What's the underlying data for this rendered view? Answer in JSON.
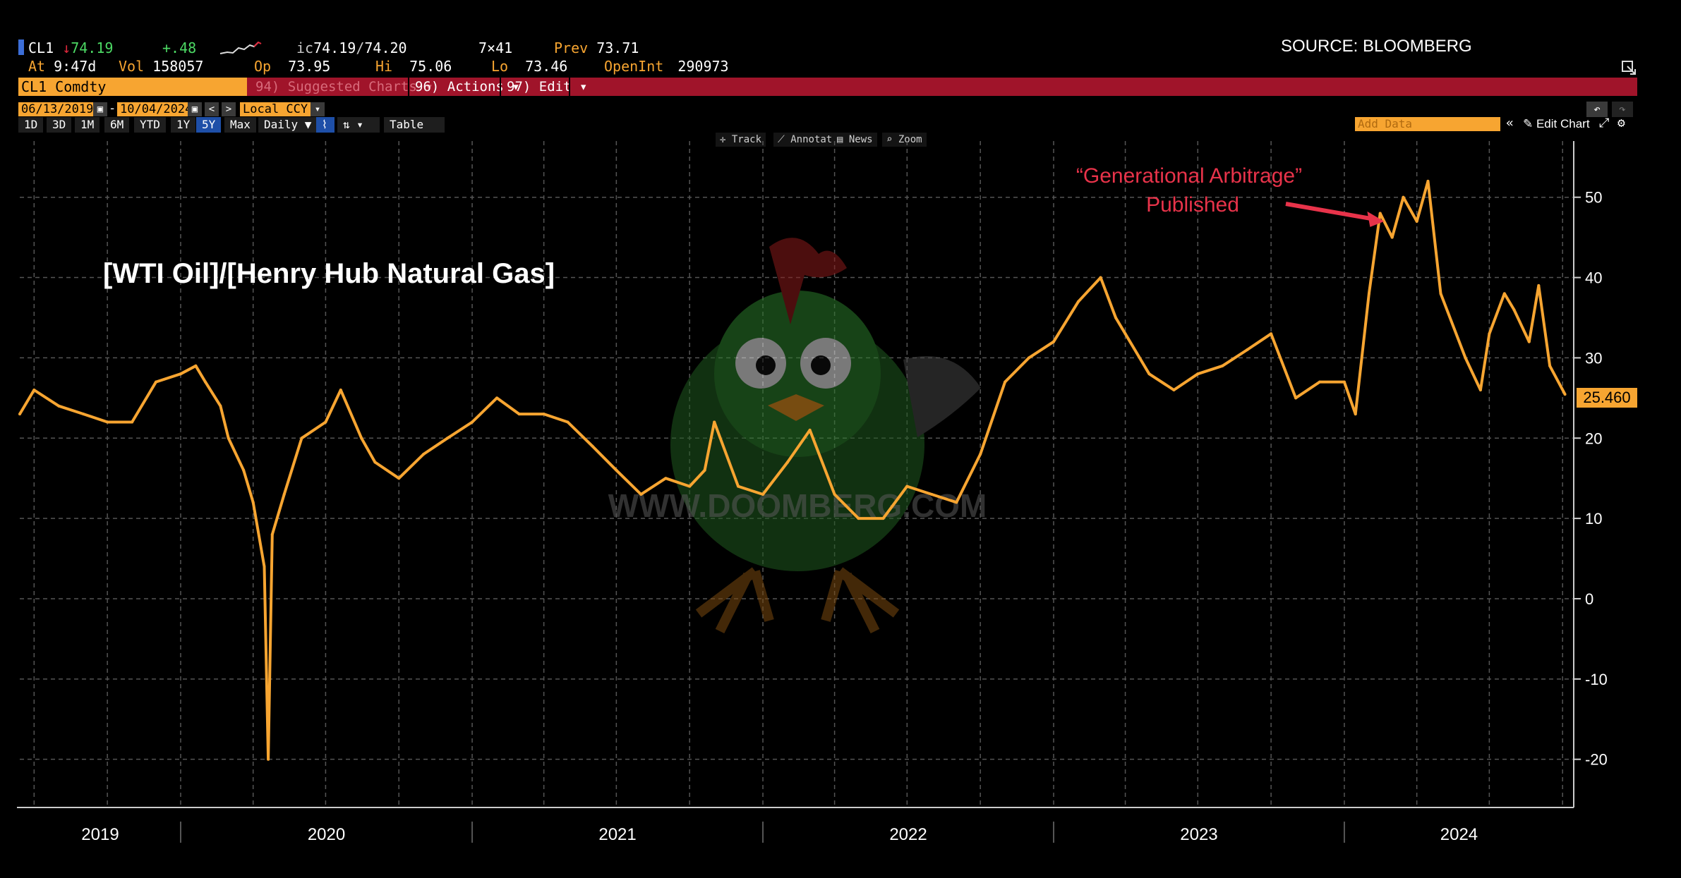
{
  "header": {
    "ticker": "CL1",
    "arrow": "↓",
    "last": "74.19",
    "change": "+.48",
    "ic_label": "ic",
    "ic_value": "74.19",
    "ic_slash": "/",
    "ic_value2": "74.20",
    "size": "7×41",
    "prev_label": "Prev",
    "prev": "73.71",
    "at_label": "At",
    "at_time": "9:47d",
    "vol_label": "Vol",
    "vol": "158057",
    "op_label": "Op",
    "op": "73.95",
    "hi_label": "Hi",
    "hi": "75.06",
    "lo_label": "Lo",
    "lo": "73.46",
    "openint_label": "OpenInt",
    "openint": "290973"
  },
  "source": "SOURCE: BLOOMBERG",
  "menu": {
    "security": "CL1 Comdty",
    "suggested": "94) Suggested Charts  ▾",
    "actions": "96) Actions  ▾",
    "edit": "97) Edit  ▾"
  },
  "dates": {
    "start": "06/13/2019",
    "dash": "-",
    "end": "10/04/2024",
    "currency": "Local CCY"
  },
  "periods": [
    "1D",
    "3D",
    "1M",
    "6M",
    "YTD",
    "1Y",
    "5Y",
    "Max"
  ],
  "selected_period": "5Y",
  "freq": "Daily ▼",
  "table_label": "Table",
  "add_data": "Add Data",
  "edit_chart": "Edit Chart",
  "controls": [
    "Track",
    "Annotate",
    "News",
    "Zoom"
  ],
  "watermark": "WWW.DOOMBERG.COM",
  "colors": {
    "line": "#f7a531",
    "bar": "#a0142a",
    "annotation": "#e8334a",
    "grid": "#555555"
  },
  "chart_data": {
    "type": "line",
    "title": "[WTI Oil]/[Henry Hub Natural Gas]",
    "last_value_label": "25.460",
    "ylim": [
      -26,
      57
    ],
    "yticks": [
      50,
      40,
      30,
      20,
      10,
      0,
      -10,
      -20
    ],
    "ytick_labels": [
      "50",
      "40",
      "30",
      "20",
      "10",
      "0",
      "-10",
      "-20"
    ],
    "x_labels": [
      "2019",
      "2020",
      "2021",
      "2022",
      "2023",
      "2024"
    ],
    "annotations": [
      {
        "line1": "“Generational Arbitrage”",
        "line2": "Published",
        "date": "2024-02"
      }
    ],
    "series": [
      {
        "x": [
          "2019-06-13",
          "2019-07-01",
          "2019-08-01",
          "2019-09-01",
          "2019-10-01",
          "2019-11-01",
          "2019-12-01",
          "2020-01-01",
          "2020-01-20",
          "2020-02-01",
          "2020-02-20",
          "2020-03-01",
          "2020-03-20",
          "2020-04-01",
          "2020-04-15",
          "2020-04-20",
          "2020-04-25",
          "2020-05-10",
          "2020-06-01",
          "2020-07-01",
          "2020-07-20",
          "2020-08-15",
          "2020-09-01",
          "2020-10-01",
          "2020-11-01",
          "2020-12-01",
          "2021-01-01",
          "2021-02-01",
          "2021-03-01",
          "2021-04-01",
          "2021-05-01",
          "2021-06-01",
          "2021-07-01",
          "2021-08-01",
          "2021-09-01",
          "2021-10-01",
          "2021-10-20",
          "2021-11-01",
          "2021-12-01",
          "2022-01-01",
          "2022-02-01",
          "2022-03-01",
          "2022-04-01",
          "2022-05-01",
          "2022-06-01",
          "2022-07-01",
          "2022-08-01",
          "2022-09-01",
          "2022-10-01",
          "2022-11-01",
          "2022-12-01",
          "2023-01-01",
          "2023-02-01",
          "2023-03-01",
          "2023-03-20",
          "2023-04-01",
          "2023-05-01",
          "2023-06-01",
          "2023-07-01",
          "2023-08-01",
          "2023-09-01",
          "2023-10-01",
          "2023-11-01",
          "2023-12-01",
          "2024-01-01",
          "2024-01-15",
          "2024-02-01",
          "2024-02-15",
          "2024-03-01",
          "2024-03-15",
          "2024-04-01",
          "2024-04-15",
          "2024-05-01",
          "2024-06-01",
          "2024-06-20",
          "2024-07-01",
          "2024-07-20",
          "2024-08-01",
          "2024-08-20",
          "2024-09-01",
          "2024-09-15",
          "2024-10-04"
        ],
        "values": [
          23,
          26,
          24,
          23,
          22,
          22,
          27,
          28,
          29,
          27,
          24,
          20,
          16,
          12,
          4,
          -20,
          8,
          13,
          20,
          22,
          26,
          20,
          17,
          15,
          18,
          20,
          22,
          25,
          23,
          23,
          22,
          19,
          16,
          13,
          15,
          14,
          16,
          22,
          14,
          13,
          17,
          21,
          13,
          10,
          10,
          14,
          13,
          12,
          18,
          27,
          30,
          32,
          37,
          40,
          35,
          33,
          28,
          26,
          28,
          29,
          31,
          33,
          25,
          27,
          27,
          23,
          38,
          48,
          45,
          50,
          47,
          52,
          38,
          30,
          26,
          33,
          38,
          36,
          32,
          39,
          29,
          25.46
        ]
      }
    ]
  }
}
